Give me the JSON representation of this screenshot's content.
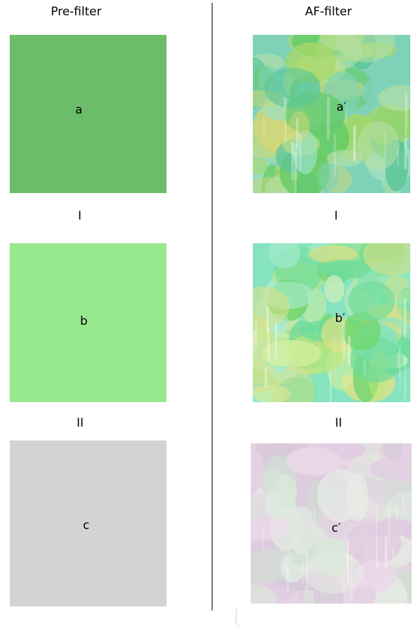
{
  "headers": {
    "left": "Pre-filter",
    "right": "AF-filter"
  },
  "rows": [
    {
      "roman": "",
      "left_label": "a",
      "right_label": "a′",
      "left_color": "#6cbd6a",
      "right_palette": [
        "#7fd2b8",
        "#a8d86a",
        "#cfd77a",
        "#66cc66",
        "#9ee0c0",
        "#c9e58c",
        "#5cc69a",
        "#b7e0a6"
      ]
    },
    {
      "roman": "I",
      "left_label": "b",
      "right_label": "b′",
      "left_color": "#98e98e",
      "right_palette": [
        "#86e3bf",
        "#bfe77e",
        "#dbe087",
        "#72d66e",
        "#a9ecd0",
        "#d6ef9e",
        "#6fdc9b",
        "#c4ecbc"
      ]
    },
    {
      "roman": "II",
      "left_label": "c",
      "right_label": "c′",
      "left_color": "#d3d3d3",
      "right_palette": [
        "#e4d2e2",
        "#d9e7da",
        "#ead8e8",
        "#cfe0d2",
        "#e0cbe0",
        "#e8ece6",
        "#d7c7d9",
        "#dfe9df"
      ]
    }
  ]
}
